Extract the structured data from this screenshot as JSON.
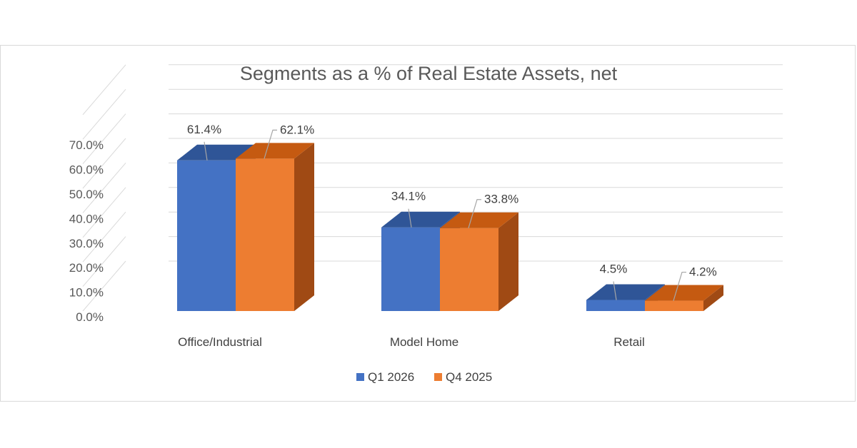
{
  "chart_data": {
    "type": "bar",
    "title": "Segments as a % of Real Estate Assets, net",
    "categories": [
      "Office/Industrial",
      "Model Home",
      "Retail"
    ],
    "series": [
      {
        "name": "Q1 2026",
        "values": [
          61.4,
          34.1,
          4.5
        ],
        "labels": [
          "61.4%",
          "34.1%",
          "4.5%"
        ],
        "color": "#4472C4",
        "top_color": "#2F5597",
        "side_color": "#2F5597"
      },
      {
        "name": "Q4 2025",
        "values": [
          62.1,
          33.8,
          4.2
        ],
        "labels": [
          "62.1%",
          "33.8%",
          "4.2%"
        ],
        "color": "#ED7D31",
        "top_color": "#C55A11",
        "side_color": "#A04A14"
      }
    ],
    "ylim": [
      0,
      70
    ],
    "yticks": [
      "0.0%",
      "10.0%",
      "20.0%",
      "30.0%",
      "40.0%",
      "50.0%",
      "60.0%",
      "70.0%"
    ],
    "ytick_values": [
      0,
      10,
      20,
      30,
      40,
      50,
      60,
      70
    ],
    "grid": true,
    "style": "3d-clustered-column",
    "legend_position": "bottom"
  }
}
